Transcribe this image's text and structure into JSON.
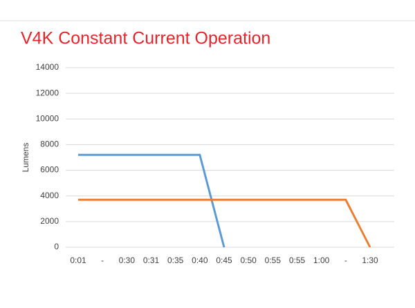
{
  "chart_data": {
    "type": "line",
    "title": "V4K Constant Current Operation",
    "y_label": "Lumens",
    "categories": [
      "0:01",
      "-",
      "0:30",
      "0:31",
      "0:35",
      "0:40",
      "0:45",
      "0:50",
      "0:55",
      "0:55",
      "1:00",
      "-",
      "1:30"
    ],
    "series": [
      {
        "color": "#5b9bd5",
        "values": [
          7200,
          7200,
          7200,
          7200,
          7200,
          7200,
          0,
          null,
          null,
          null,
          null,
          null,
          null
        ]
      },
      {
        "color": "#ed7d31",
        "values": [
          3700,
          3700,
          3700,
          3700,
          3700,
          3700,
          3700,
          3700,
          3700,
          3700,
          3700,
          3700,
          0
        ]
      }
    ],
    "ylim": [
      0,
      14000
    ],
    "yticks": [
      0,
      2000,
      4000,
      6000,
      8000,
      10000,
      12000,
      14000
    ],
    "grid": true
  }
}
